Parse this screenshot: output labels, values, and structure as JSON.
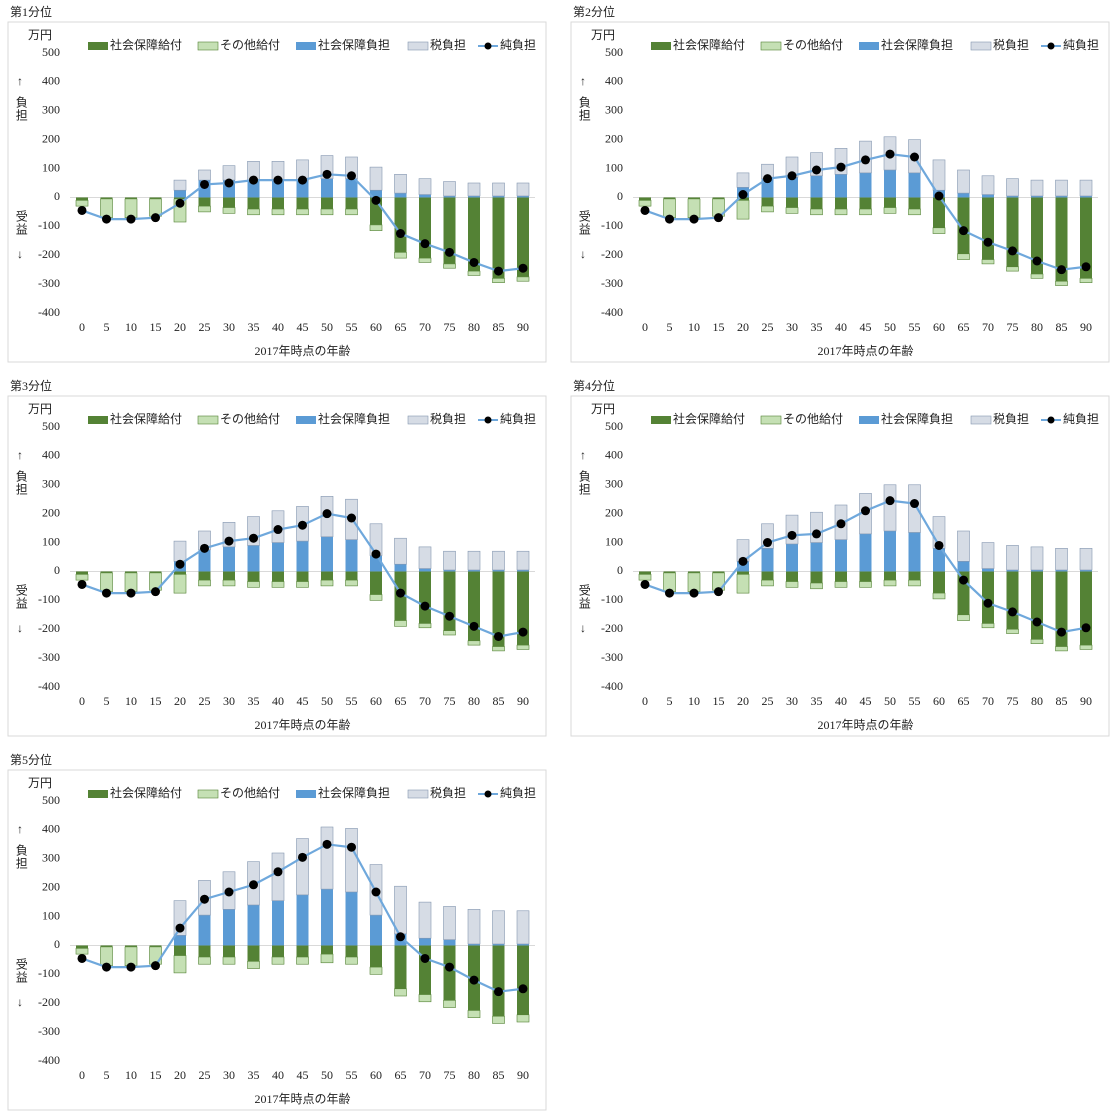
{
  "chart_data": [
    {
      "type": "bar",
      "title": "第1分位",
      "y_unit": "万円",
      "x_label": "2017年時点の年齢",
      "annotations": [
        "↑",
        "負担",
        "受益",
        "↓"
      ],
      "categories": [
        0,
        5,
        10,
        15,
        20,
        25,
        30,
        35,
        40,
        45,
        50,
        55,
        60,
        65,
        70,
        75,
        80,
        85,
        90
      ],
      "ylim": [
        -400,
        500
      ],
      "yticks": [
        -400,
        -300,
        -200,
        -100,
        0,
        100,
        200,
        300,
        400,
        500
      ],
      "series": [
        {
          "name": "社会保障給付",
          "type": "bar",
          "color": "#548235",
          "values": [
            -10,
            -5,
            -5,
            -5,
            -5,
            -30,
            -35,
            -40,
            -40,
            -40,
            -40,
            -40,
            -95,
            -190,
            -210,
            -230,
            -255,
            -280,
            -275
          ]
        },
        {
          "name": "その他給付",
          "type": "bar",
          "color": "#c5e0b4",
          "values": [
            -20,
            -65,
            -65,
            -60,
            -80,
            -20,
            -20,
            -20,
            -20,
            -20,
            -20,
            -20,
            -20,
            -20,
            -15,
            -15,
            -15,
            -15,
            -15
          ]
        },
        {
          "name": "社会保障負担",
          "type": "bar",
          "color": "#5b9bd5",
          "values": [
            0,
            0,
            0,
            0,
            25,
            60,
            60,
            60,
            60,
            60,
            65,
            65,
            25,
            15,
            10,
            5,
            5,
            5,
            5
          ]
        },
        {
          "name": "税負担",
          "type": "bar",
          "color": "#d6dce5",
          "values": [
            0,
            0,
            0,
            0,
            35,
            35,
            50,
            65,
            65,
            70,
            80,
            75,
            80,
            65,
            55,
            50,
            45,
            45,
            45
          ]
        },
        {
          "name": "純負担",
          "type": "line",
          "color": "#6fa8dc",
          "values": [
            -45,
            -75,
            -75,
            -70,
            -20,
            45,
            50,
            60,
            60,
            60,
            80,
            75,
            -10,
            -125,
            -160,
            -190,
            -225,
            -255,
            -245
          ]
        }
      ]
    },
    {
      "type": "bar",
      "title": "第2分位",
      "y_unit": "万円",
      "x_label": "2017年時点の年齢",
      "annotations": [
        "↑",
        "負担",
        "受益",
        "↓"
      ],
      "categories": [
        0,
        5,
        10,
        15,
        20,
        25,
        30,
        35,
        40,
        45,
        50,
        55,
        60,
        65,
        70,
        75,
        80,
        85,
        90
      ],
      "ylim": [
        -400,
        500
      ],
      "yticks": [
        -400,
        -300,
        -200,
        -100,
        0,
        100,
        200,
        300,
        400,
        500
      ],
      "series": [
        {
          "name": "社会保障給付",
          "type": "bar",
          "color": "#548235",
          "values": [
            -10,
            -5,
            -5,
            -5,
            -10,
            -30,
            -35,
            -40,
            -40,
            -40,
            -35,
            -40,
            -105,
            -195,
            -215,
            -240,
            -265,
            -290,
            -280
          ]
        },
        {
          "name": "その他給付",
          "type": "bar",
          "color": "#c5e0b4",
          "values": [
            -20,
            -65,
            -65,
            -60,
            -65,
            -20,
            -20,
            -20,
            -20,
            -20,
            -20,
            -20,
            -20,
            -20,
            -15,
            -15,
            -15,
            -15,
            -15
          ]
        },
        {
          "name": "社会保障負担",
          "type": "bar",
          "color": "#5b9bd5",
          "values": [
            0,
            0,
            0,
            0,
            35,
            65,
            70,
            75,
            80,
            85,
            95,
            85,
            25,
            15,
            10,
            5,
            5,
            5,
            5
          ]
        },
        {
          "name": "税負担",
          "type": "bar",
          "color": "#d6dce5",
          "values": [
            0,
            0,
            0,
            0,
            50,
            50,
            70,
            80,
            90,
            110,
            115,
            115,
            105,
            80,
            65,
            60,
            55,
            55,
            55
          ]
        },
        {
          "name": "純負担",
          "type": "line",
          "color": "#6fa8dc",
          "values": [
            -45,
            -75,
            -75,
            -70,
            10,
            65,
            75,
            95,
            105,
            130,
            150,
            140,
            5,
            -115,
            -155,
            -185,
            -220,
            -250,
            -240
          ]
        }
      ]
    },
    {
      "type": "bar",
      "title": "第3分位",
      "y_unit": "万円",
      "x_label": "2017年時点の年齢",
      "annotations": [
        "↑",
        "負担",
        "受益",
        "↓"
      ],
      "categories": [
        0,
        5,
        10,
        15,
        20,
        25,
        30,
        35,
        40,
        45,
        50,
        55,
        60,
        65,
        70,
        75,
        80,
        85,
        90
      ],
      "ylim": [
        -400,
        500
      ],
      "yticks": [
        -400,
        -300,
        -200,
        -100,
        0,
        100,
        200,
        300,
        400,
        500
      ],
      "series": [
        {
          "name": "社会保障給付",
          "type": "bar",
          "color": "#548235",
          "values": [
            -10,
            -5,
            -5,
            -5,
            -10,
            -30,
            -30,
            -35,
            -35,
            -35,
            -30,
            -30,
            -80,
            -170,
            -180,
            -205,
            -240,
            -260,
            -255
          ]
        },
        {
          "name": "その他給付",
          "type": "bar",
          "color": "#c5e0b4",
          "values": [
            -20,
            -65,
            -65,
            -60,
            -65,
            -20,
            -20,
            -20,
            -20,
            -20,
            -20,
            -20,
            -20,
            -20,
            -15,
            -15,
            -15,
            -15,
            -15
          ]
        },
        {
          "name": "社会保障負担",
          "type": "bar",
          "color": "#5b9bd5",
          "values": [
            0,
            0,
            0,
            0,
            35,
            75,
            85,
            90,
            100,
            105,
            120,
            110,
            55,
            25,
            10,
            5,
            5,
            5,
            5
          ]
        },
        {
          "name": "税負担",
          "type": "bar",
          "color": "#d6dce5",
          "values": [
            0,
            0,
            0,
            0,
            70,
            65,
            85,
            100,
            110,
            120,
            140,
            140,
            110,
            90,
            75,
            65,
            65,
            65,
            65
          ]
        },
        {
          "name": "純負担",
          "type": "line",
          "color": "#6fa8dc",
          "values": [
            -45,
            -75,
            -75,
            -70,
            25,
            80,
            105,
            115,
            145,
            160,
            200,
            185,
            60,
            -75,
            -120,
            -155,
            -190,
            -225,
            -210
          ]
        }
      ]
    },
    {
      "type": "bar",
      "title": "第4分位",
      "y_unit": "万円",
      "x_label": "2017年時点の年齢",
      "annotations": [
        "↑",
        "負担",
        "受益",
        "↓"
      ],
      "categories": [
        0,
        5,
        10,
        15,
        20,
        25,
        30,
        35,
        40,
        45,
        50,
        55,
        60,
        65,
        70,
        75,
        80,
        85,
        90
      ],
      "ylim": [
        -400,
        500
      ],
      "yticks": [
        -400,
        -300,
        -200,
        -100,
        0,
        100,
        200,
        300,
        400,
        500
      ],
      "series": [
        {
          "name": "社会保障給付",
          "type": "bar",
          "color": "#548235",
          "values": [
            -10,
            -5,
            -5,
            -5,
            -10,
            -30,
            -35,
            -40,
            -35,
            -35,
            -30,
            -30,
            -75,
            -150,
            -180,
            -200,
            -235,
            -260,
            -255
          ]
        },
        {
          "name": "その他給付",
          "type": "bar",
          "color": "#c5e0b4",
          "values": [
            -20,
            -65,
            -65,
            -60,
            -65,
            -20,
            -20,
            -20,
            -20,
            -20,
            -20,
            -20,
            -20,
            -20,
            -15,
            -15,
            -15,
            -15,
            -15
          ]
        },
        {
          "name": "社会保障負担",
          "type": "bar",
          "color": "#5b9bd5",
          "values": [
            0,
            0,
            0,
            0,
            35,
            80,
            95,
            100,
            110,
            130,
            140,
            135,
            80,
            35,
            10,
            5,
            5,
            5,
            5
          ]
        },
        {
          "name": "税負担",
          "type": "bar",
          "color": "#d6dce5",
          "values": [
            0,
            0,
            0,
            0,
            75,
            85,
            100,
            105,
            120,
            140,
            160,
            165,
            110,
            105,
            90,
            85,
            80,
            75,
            75
          ]
        },
        {
          "name": "純負担",
          "type": "line",
          "color": "#6fa8dc",
          "values": [
            -45,
            -75,
            -75,
            -70,
            35,
            100,
            125,
            130,
            165,
            210,
            245,
            235,
            90,
            -30,
            -110,
            -140,
            -175,
            -210,
            -195
          ]
        }
      ]
    },
    {
      "type": "bar",
      "title": "第5分位",
      "y_unit": "万円",
      "x_label": "2017年時点の年齢",
      "annotations": [
        "↑",
        "負担",
        "受益",
        "↓"
      ],
      "categories": [
        0,
        5,
        10,
        15,
        20,
        25,
        30,
        35,
        40,
        45,
        50,
        55,
        60,
        65,
        70,
        75,
        80,
        85,
        90
      ],
      "ylim": [
        -400,
        500
      ],
      "yticks": [
        -400,
        -300,
        -200,
        -100,
        0,
        100,
        200,
        300,
        400,
        500
      ],
      "series": [
        {
          "name": "社会保障給付",
          "type": "bar",
          "color": "#548235",
          "values": [
            -10,
            -5,
            -5,
            -5,
            -35,
            -40,
            -40,
            -55,
            -40,
            -40,
            -30,
            -40,
            -75,
            -150,
            -170,
            -190,
            -225,
            -245,
            -240
          ]
        },
        {
          "name": "その他給付",
          "type": "bar",
          "color": "#c5e0b4",
          "values": [
            -20,
            -65,
            -65,
            -60,
            -60,
            -25,
            -25,
            -25,
            -25,
            -25,
            -30,
            -25,
            -25,
            -25,
            -25,
            -25,
            -25,
            -25,
            -25
          ]
        },
        {
          "name": "社会保障負担",
          "type": "bar",
          "color": "#5b9bd5",
          "values": [
            0,
            0,
            0,
            0,
            35,
            105,
            125,
            140,
            155,
            175,
            195,
            185,
            105,
            40,
            25,
            20,
            5,
            5,
            5
          ]
        },
        {
          "name": "税負担",
          "type": "bar",
          "color": "#d6dce5",
          "values": [
            0,
            0,
            0,
            0,
            120,
            120,
            130,
            150,
            165,
            195,
            215,
            220,
            175,
            165,
            125,
            115,
            120,
            115,
            115
          ]
        },
        {
          "name": "純負担",
          "type": "line",
          "color": "#6fa8dc",
          "values": [
            -45,
            -75,
            -75,
            -70,
            60,
            160,
            185,
            210,
            255,
            305,
            350,
            340,
            185,
            30,
            -45,
            -75,
            -120,
            -160,
            -150
          ]
        }
      ]
    }
  ]
}
